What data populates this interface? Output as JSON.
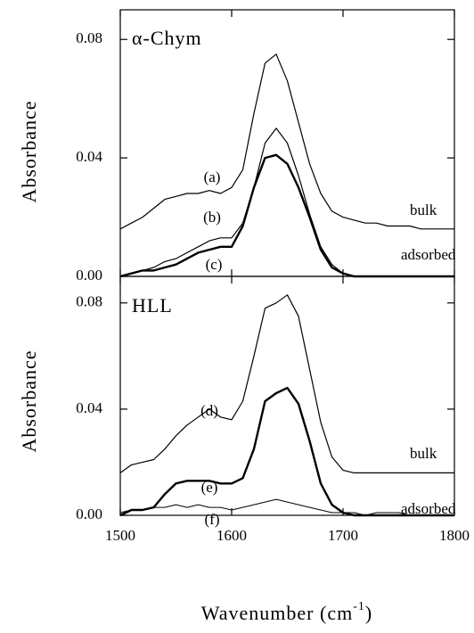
{
  "chart_data": [
    {
      "type": "line",
      "ylabel": "Absorbance",
      "annotations": [
        "α-Chym",
        "bulk",
        "adsorbed"
      ],
      "x": [
        1500,
        1510,
        1520,
        1530,
        1540,
        1550,
        1560,
        1570,
        1580,
        1590,
        1600,
        1610,
        1620,
        1630,
        1640,
        1650,
        1660,
        1670,
        1680,
        1690,
        1700,
        1710,
        1720,
        1730,
        1740,
        1750,
        1760,
        1770,
        1780,
        1790,
        1800
      ],
      "xlim": [
        1500,
        1800
      ],
      "ylim": [
        0,
        0.09
      ],
      "yticks": [
        {
          "value": 0,
          "label": "0.00"
        },
        0.04,
        0.08
      ],
      "series": [
        {
          "name": "(a)",
          "color": "#000000",
          "linewidth": 1.2,
          "values": [
            0.016,
            0.018,
            0.02,
            0.023,
            0.026,
            0.027,
            0.028,
            0.028,
            0.029,
            0.028,
            0.03,
            0.036,
            0.055,
            0.072,
            0.075,
            0.066,
            0.052,
            0.038,
            0.028,
            0.022,
            0.02,
            0.019,
            0.018,
            0.018,
            0.017,
            0.017,
            0.017,
            0.016,
            0.016,
            0.016,
            0.016
          ]
        },
        {
          "name": "(b)",
          "color": "#000000",
          "linewidth": 1.2,
          "values": [
            0.0,
            0.001,
            0.002,
            0.003,
            0.005,
            0.006,
            0.008,
            0.01,
            0.012,
            0.013,
            0.013,
            0.018,
            0.03,
            0.045,
            0.05,
            0.045,
            0.034,
            0.021,
            0.01,
            0.004,
            0.001,
            0.0,
            0.0,
            0.0,
            0.0,
            0.0,
            0.0,
            0.0,
            0.0,
            0.0,
            0.0
          ]
        },
        {
          "name": "(c)",
          "color": "#000000",
          "linewidth": 2.4,
          "values": [
            0.0,
            0.001,
            0.002,
            0.002,
            0.003,
            0.004,
            0.006,
            0.008,
            0.009,
            0.01,
            0.01,
            0.017,
            0.03,
            0.04,
            0.041,
            0.038,
            0.03,
            0.02,
            0.009,
            0.003,
            0.001,
            0.0,
            0.0,
            0.0,
            0.0,
            0.0,
            0.0,
            0.0,
            0.0,
            0.0,
            0.0
          ]
        }
      ]
    },
    {
      "type": "line",
      "ylabel": "Absorbance",
      "xlabel": [
        "Wavenumber (cm",
        "-1",
        ")"
      ],
      "annotations": [
        "HLL",
        "bulk",
        "adsorbed"
      ],
      "x": [
        1500,
        1510,
        1520,
        1530,
        1540,
        1550,
        1560,
        1570,
        1580,
        1590,
        1600,
        1610,
        1620,
        1630,
        1640,
        1650,
        1660,
        1670,
        1680,
        1690,
        1700,
        1710,
        1720,
        1730,
        1740,
        1750,
        1760,
        1770,
        1780,
        1790,
        1800
      ],
      "xlim": [
        1500,
        1800
      ],
      "xticks": [
        1500,
        1600,
        1700,
        1800
      ],
      "ylim": [
        0,
        0.09
      ],
      "yticks": [
        {
          "value": 0,
          "label": "0.00"
        },
        0.04,
        0.08
      ],
      "series": [
        {
          "name": "(d)",
          "color": "#000000",
          "linewidth": 1.2,
          "values": [
            0.016,
            0.019,
            0.02,
            0.021,
            0.025,
            0.03,
            0.034,
            0.037,
            0.04,
            0.037,
            0.036,
            0.043,
            0.06,
            0.078,
            0.08,
            0.083,
            0.075,
            0.055,
            0.035,
            0.022,
            0.017,
            0.016,
            0.016,
            0.016,
            0.016,
            0.016,
            0.016,
            0.016,
            0.016,
            0.016,
            0.016
          ]
        },
        {
          "name": "(e)",
          "color": "#000000",
          "linewidth": 2.4,
          "values": [
            0.0,
            0.002,
            0.002,
            0.003,
            0.008,
            0.012,
            0.013,
            0.013,
            0.013,
            0.012,
            0.012,
            0.014,
            0.025,
            0.043,
            0.046,
            0.048,
            0.042,
            0.028,
            0.012,
            0.004,
            0.001,
            0.0,
            0.0,
            0.0,
            0.0,
            0.0,
            0.0,
            0.0,
            0.0,
            0.0,
            0.0
          ]
        },
        {
          "name": "(f)",
          "color": "#000000",
          "linewidth": 1.0,
          "values": [
            0.001,
            0.002,
            0.002,
            0.003,
            0.003,
            0.004,
            0.003,
            0.004,
            0.003,
            0.003,
            0.002,
            0.003,
            0.004,
            0.005,
            0.006,
            0.005,
            0.004,
            0.003,
            0.002,
            0.001,
            0.001,
            0.001,
            0.0,
            0.001,
            0.001,
            0.001,
            0.0,
            0.0,
            0.0,
            0.0,
            0.0
          ]
        }
      ]
    }
  ]
}
